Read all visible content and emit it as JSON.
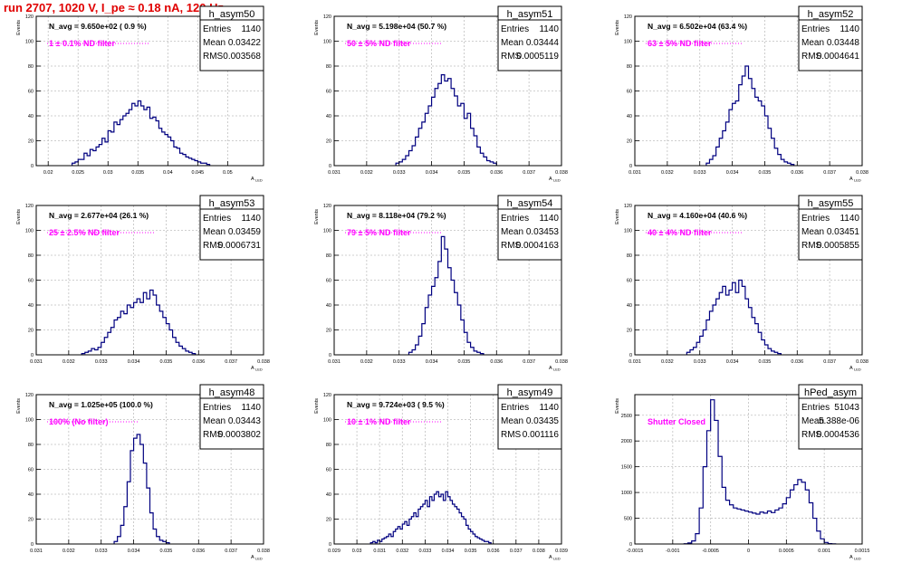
{
  "page": {
    "run_title": "run 2707,  1020 V, I_pe ≈ 0.18 nA, 120 Hz",
    "y_axis_title": "Events",
    "x_axis_title": "A",
    "x_axis_subscript": "LED",
    "stats_labels": [
      "Entries",
      "Mean",
      "RMS"
    ]
  },
  "colors": {
    "histogram_line": "#000080",
    "annotation": "#ff00ff",
    "axis": "#000000",
    "grid": "#c0c0c0",
    "title_red": "#e00000"
  },
  "chart_data": [
    {
      "type": "histogram",
      "name": "h_asym50",
      "navg": "N_avg = 9.650e+02 ( 0.9 %)",
      "filter": "1 ± 0.1% ND filter",
      "stats": [
        "1140",
        "0.03422",
        "0.003568"
      ],
      "xlim": [
        0.018,
        0.056
      ],
      "ylim": [
        0,
        120
      ],
      "xticks": [
        0.02,
        0.025,
        0.03,
        0.035,
        0.04,
        0.045,
        0.05
      ],
      "xticklabels": [
        "0.02",
        "0.025",
        "0.03",
        "0.035",
        "0.04",
        "0.045",
        "0.05"
      ],
      "yticks": [
        0,
        20,
        40,
        60,
        80,
        100,
        120
      ],
      "bins": {
        "start": 0.024,
        "width": 0.0005,
        "counts": [
          2,
          3,
          5,
          5,
          10,
          8,
          13,
          12,
          15,
          17,
          22,
          19,
          28,
          27,
          35,
          33,
          37,
          40,
          42,
          45,
          50,
          48,
          52,
          48,
          45,
          47,
          38,
          39,
          36,
          30,
          27,
          25,
          23,
          20,
          15,
          14,
          10,
          9,
          7,
          6,
          5,
          4,
          3,
          2,
          2,
          1
        ]
      }
    },
    {
      "type": "histogram",
      "name": "h_asym51",
      "navg": "N_avg = 5.198e+04 (50.7 %)",
      "filter": "50 ± 5% ND filter",
      "stats": [
        "1140",
        "0.03444",
        "0.0005119"
      ],
      "xlim": [
        0.031,
        0.038
      ],
      "ylim": [
        0,
        120
      ],
      "xticks": [
        0.031,
        0.032,
        0.033,
        0.034,
        0.035,
        0.036,
        0.037,
        0.038
      ],
      "xticklabels": [
        "0.031",
        "0.032",
        "0.033",
        "0.034",
        "0.035",
        "0.036",
        "0.037",
        "0.038"
      ],
      "yticks": [
        0,
        20,
        40,
        60,
        80,
        100,
        120
      ],
      "bins": {
        "start": 0.0329,
        "width": 0.0001,
        "counts": [
          2,
          3,
          5,
          8,
          12,
          16,
          23,
          30,
          35,
          42,
          48,
          55,
          62,
          66,
          73,
          68,
          70,
          62,
          56,
          48,
          50,
          38,
          42,
          30,
          24,
          15,
          10,
          7,
          4,
          3,
          2
        ]
      }
    },
    {
      "type": "histogram",
      "name": "h_asym52",
      "navg": "N_avg = 6.502e+04 (63.4 %)",
      "filter": "63 ± 5% ND filter",
      "stats": [
        "1140",
        "0.03448",
        "0.0004641"
      ],
      "xlim": [
        0.031,
        0.038
      ],
      "ylim": [
        0,
        120
      ],
      "xticks": [
        0.031,
        0.032,
        0.033,
        0.034,
        0.035,
        0.036,
        0.037,
        0.038
      ],
      "xticklabels": [
        "0.031",
        "0.032",
        "0.033",
        "0.034",
        "0.035",
        "0.036",
        "0.037",
        "0.038"
      ],
      "yticks": [
        0,
        20,
        40,
        60,
        80,
        100,
        120
      ],
      "bins": {
        "start": 0.0332,
        "width": 0.0001,
        "counts": [
          2,
          5,
          8,
          15,
          22,
          28,
          35,
          45,
          50,
          52,
          65,
          72,
          80,
          70,
          62,
          55,
          52,
          48,
          40,
          30,
          22,
          14,
          9,
          5,
          3,
          2,
          1
        ]
      }
    },
    {
      "type": "histogram",
      "name": "h_asym53",
      "navg": "N_avg = 2.677e+04 (26.1 %)",
      "filter": "25 ± 2.5% ND filter",
      "stats": [
        "1140",
        "0.03459",
        "0.0006731"
      ],
      "xlim": [
        0.031,
        0.038
      ],
      "ylim": [
        0,
        120
      ],
      "xticks": [
        0.031,
        0.032,
        0.033,
        0.034,
        0.035,
        0.036,
        0.037,
        0.038
      ],
      "xticklabels": [
        "0.031",
        "0.032",
        "0.033",
        "0.034",
        "0.035",
        "0.036",
        "0.037",
        "0.038"
      ],
      "yticks": [
        0,
        20,
        40,
        60,
        80,
        100,
        120
      ],
      "bins": {
        "start": 0.0324,
        "width": 0.0001,
        "counts": [
          1,
          2,
          3,
          5,
          4,
          6,
          10,
          14,
          18,
          22,
          28,
          30,
          35,
          33,
          40,
          38,
          42,
          45,
          42,
          50,
          45,
          52,
          48,
          40,
          35,
          30,
          25,
          20,
          14,
          10,
          7,
          5,
          3,
          2,
          1
        ]
      }
    },
    {
      "type": "histogram",
      "name": "h_asym54",
      "navg": "N_avg = 8.118e+04 (79.2 %)",
      "filter": "79 ± 5% ND filter",
      "stats": [
        "1140",
        "0.03453",
        "0.0004163"
      ],
      "xlim": [
        0.031,
        0.038
      ],
      "ylim": [
        0,
        120
      ],
      "xticks": [
        0.031,
        0.032,
        0.033,
        0.034,
        0.035,
        0.036,
        0.037,
        0.038
      ],
      "xticklabels": [
        "0.031",
        "0.032",
        "0.033",
        "0.034",
        "0.035",
        "0.036",
        "0.037",
        "0.038"
      ],
      "yticks": [
        0,
        20,
        40,
        60,
        80,
        100,
        120
      ],
      "bins": {
        "start": 0.0333,
        "width": 0.0001,
        "counts": [
          2,
          4,
          8,
          15,
          25,
          38,
          48,
          55,
          62,
          75,
          95,
          85,
          70,
          60,
          50,
          40,
          28,
          18,
          10,
          6,
          3,
          2,
          1
        ]
      }
    },
    {
      "type": "histogram",
      "name": "h_asym55",
      "navg": "N_avg = 4.160e+04 (40.6 %)",
      "filter": "40 ± 4% ND filter",
      "stats": [
        "1140",
        "0.03451",
        "0.0005855"
      ],
      "xlim": [
        0.031,
        0.038
      ],
      "ylim": [
        0,
        120
      ],
      "xticks": [
        0.031,
        0.032,
        0.033,
        0.034,
        0.035,
        0.036,
        0.037,
        0.038
      ],
      "xticklabels": [
        "0.031",
        "0.032",
        "0.033",
        "0.034",
        "0.035",
        "0.036",
        "0.037",
        "0.038"
      ],
      "yticks": [
        0,
        20,
        40,
        60,
        80,
        100,
        120
      ],
      "bins": {
        "start": 0.0326,
        "width": 0.0001,
        "counts": [
          2,
          4,
          6,
          10,
          15,
          20,
          28,
          35,
          40,
          45,
          50,
          55,
          48,
          52,
          58,
          50,
          60,
          55,
          45,
          38,
          30,
          25,
          18,
          12,
          8,
          5,
          3,
          2,
          1
        ]
      }
    },
    {
      "type": "histogram",
      "name": "h_asym48",
      "navg": "N_avg = 1.025e+05 (100.0 %)",
      "filter": "100% (No filter)",
      "stats": [
        "1140",
        "0.03443",
        "0.0003802"
      ],
      "xlim": [
        0.031,
        0.038
      ],
      "ylim": [
        0,
        120
      ],
      "xticks": [
        0.031,
        0.032,
        0.033,
        0.034,
        0.035,
        0.036,
        0.037,
        0.038
      ],
      "xticklabels": [
        "0.031",
        "0.032",
        "0.033",
        "0.034",
        "0.035",
        "0.036",
        "0.037",
        "0.038"
      ],
      "yticks": [
        0,
        20,
        40,
        60,
        80,
        100,
        120
      ],
      "bins": {
        "start": 0.0334,
        "width": 0.0001,
        "counts": [
          2,
          6,
          15,
          30,
          50,
          75,
          85,
          88,
          80,
          65,
          45,
          25,
          12,
          6,
          3,
          2,
          1
        ]
      }
    },
    {
      "type": "histogram",
      "name": "h_asym49",
      "navg": "N_avg = 9.724e+03 ( 9.5 %)",
      "filter": "10 ± 1% ND filter",
      "stats": [
        "1140",
        "0.03435",
        "0.001116"
      ],
      "xlim": [
        0.029,
        0.039
      ],
      "ylim": [
        0,
        120
      ],
      "xticks": [
        0.029,
        0.03,
        0.031,
        0.032,
        0.033,
        0.034,
        0.035,
        0.036,
        0.037,
        0.038,
        0.039
      ],
      "xticklabels": [
        "0.029",
        "0.03",
        "0.031",
        "0.032",
        "0.033",
        "0.034",
        "0.035",
        "0.036",
        "0.037",
        "0.038",
        "0.039"
      ],
      "yticks": [
        0,
        20,
        40,
        60,
        80,
        100,
        120
      ],
      "bins": {
        "start": 0.0306,
        "width": 0.0001,
        "counts": [
          1,
          2,
          1,
          3,
          2,
          4,
          5,
          6,
          8,
          6,
          10,
          12,
          14,
          12,
          16,
          18,
          15,
          20,
          22,
          25,
          22,
          28,
          30,
          32,
          35,
          30,
          38,
          35,
          40,
          42,
          38,
          40,
          35,
          42,
          38,
          35,
          32,
          30,
          28,
          25,
          22,
          20,
          15,
          12,
          10,
          8,
          6,
          5,
          4,
          3,
          2,
          2,
          1
        ]
      }
    },
    {
      "type": "histogram",
      "name": "hPed_asym",
      "navg": "",
      "filter": "Shutter Closed",
      "stats": [
        "51043",
        "5.388e-06",
        "0.0004536"
      ],
      "xlim": [
        -0.0015,
        0.0015
      ],
      "ylim": [
        0,
        2900
      ],
      "xticks": [
        -0.0015,
        -0.001,
        -0.0005,
        0,
        0.0005,
        0.001,
        0.0015
      ],
      "xticklabels": [
        "-0.0015",
        "-0.001",
        "-0.0005",
        "0",
        "0.0005",
        "0.001",
        "0.0015"
      ],
      "yticks": [
        0,
        500,
        1000,
        1500,
        2000,
        2500
      ],
      "bins": {
        "start": -0.00085,
        "width": 5e-05,
        "counts": [
          5,
          20,
          60,
          200,
          700,
          1500,
          2200,
          2800,
          2400,
          1700,
          1100,
          850,
          760,
          700,
          680,
          660,
          640,
          620,
          600,
          580,
          620,
          600,
          640,
          610,
          660,
          700,
          780,
          900,
          1050,
          1150,
          1250,
          1200,
          1050,
          800,
          500,
          250,
          100,
          30,
          8,
          2
        ]
      }
    }
  ]
}
